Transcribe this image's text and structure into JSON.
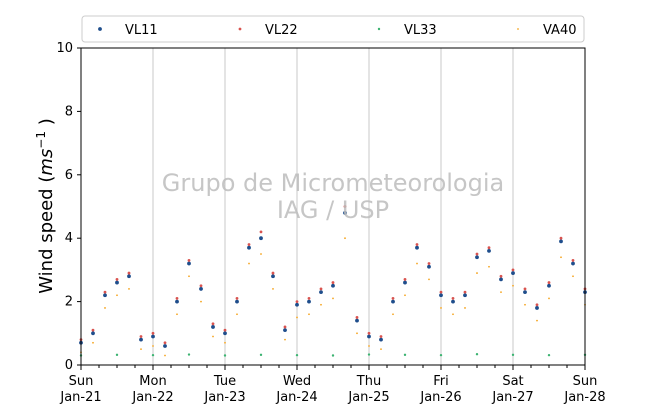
{
  "chart_data": {
    "type": "scatter",
    "ylabel_main": "Wind speed (",
    "ylabel_unit": "ms",
    "ylabel_exp": "−1",
    "ylabel_close": " )",
    "ylim": [
      0,
      10
    ],
    "yticks": [
      0,
      2,
      4,
      6,
      8,
      10
    ],
    "xlim": [
      "2024-01-21 00:00",
      "2024-01-28 00:00"
    ],
    "xtick_labels": [
      {
        "day": "Sun",
        "date": "Jan-21"
      },
      {
        "day": "Mon",
        "date": "Jan-22"
      },
      {
        "day": "Tue",
        "date": "Jan-23"
      },
      {
        "day": "Wed",
        "date": "Jan-24"
      },
      {
        "day": "Thu",
        "date": "Jan-25"
      },
      {
        "day": "Fri",
        "date": "Jan-26"
      },
      {
        "day": "Sat",
        "date": "Jan-27"
      },
      {
        "day": "Sun",
        "date": "Jan-28"
      }
    ],
    "grid": "vertical",
    "legend_placement": "top",
    "watermark": [
      "Grupo de Micrometeorologia",
      "IAG / USP"
    ],
    "series": [
      {
        "name": "VL11",
        "color": "#1f4e8c",
        "marker": "dot",
        "x_hours": [
          0,
          4,
          8,
          12,
          16,
          20,
          24,
          28,
          32,
          36,
          40,
          44,
          48,
          52,
          56,
          60,
          64,
          68,
          72,
          76,
          80,
          84,
          88,
          92,
          96,
          100,
          104,
          108,
          112,
          116,
          120,
          124,
          128,
          132,
          136,
          140,
          144,
          148,
          152,
          156,
          160,
          164,
          168
        ],
        "y": [
          0.7,
          1.0,
          2.2,
          2.6,
          2.8,
          0.8,
          0.9,
          0.6,
          2.0,
          3.2,
          2.4,
          1.2,
          1.0,
          2.0,
          3.7,
          4.0,
          2.8,
          1.1,
          1.9,
          2.0,
          2.3,
          2.5,
          4.8,
          1.4,
          0.9,
          0.8,
          2.0,
          2.6,
          3.7,
          3.1,
          2.2,
          2.0,
          2.2,
          3.4,
          3.6,
          2.7,
          2.9,
          2.3,
          1.8,
          2.5,
          3.9,
          3.2,
          2.3
        ]
      },
      {
        "name": "VL22",
        "color": "#d9534f",
        "marker": "dot",
        "x_hours": [
          0,
          4,
          8,
          12,
          16,
          20,
          24,
          28,
          32,
          36,
          40,
          44,
          48,
          52,
          56,
          60,
          64,
          68,
          72,
          76,
          80,
          84,
          88,
          92,
          96,
          100,
          104,
          108,
          112,
          116,
          120,
          124,
          128,
          132,
          136,
          140,
          144,
          148,
          152,
          156,
          160,
          164,
          168
        ],
        "y": [
          0.8,
          1.1,
          2.3,
          2.7,
          2.9,
          0.9,
          1.0,
          0.7,
          2.1,
          3.3,
          2.5,
          1.3,
          1.1,
          2.1,
          3.8,
          4.2,
          2.9,
          1.2,
          2.0,
          2.1,
          2.4,
          2.6,
          5.0,
          1.5,
          1.0,
          0.9,
          2.1,
          2.7,
          3.8,
          3.2,
          2.3,
          2.1,
          2.3,
          3.5,
          3.7,
          2.8,
          3.0,
          2.4,
          1.9,
          2.6,
          4.0,
          3.3,
          2.4
        ]
      },
      {
        "name": "VL33",
        "color": "#3cb371",
        "marker": "dot",
        "x_hours": [
          0,
          12,
          24,
          36,
          48,
          60,
          72,
          84,
          96,
          108,
          120,
          132,
          144,
          156,
          168
        ],
        "y": [
          0.3,
          0.32,
          0.31,
          0.33,
          0.3,
          0.32,
          0.31,
          0.3,
          0.33,
          0.32,
          0.31,
          0.34,
          0.32,
          0.31,
          0.32
        ]
      },
      {
        "name": "VA40",
        "color": "#f5a623",
        "marker": "dot",
        "x_hours": [
          0,
          4,
          8,
          12,
          16,
          20,
          24,
          28,
          32,
          36,
          40,
          44,
          48,
          52,
          56,
          60,
          64,
          68,
          72,
          76,
          80,
          84,
          88,
          92,
          96,
          100,
          104,
          108,
          112,
          116,
          120,
          124,
          128,
          132,
          136,
          140,
          144,
          148,
          152,
          156,
          160,
          164,
          168
        ],
        "y": [
          0.4,
          0.7,
          1.8,
          2.2,
          2.4,
          0.5,
          0.6,
          0.3,
          1.6,
          2.8,
          2.0,
          0.9,
          0.7,
          1.6,
          3.2,
          3.5,
          2.4,
          0.8,
          1.5,
          1.6,
          1.9,
          2.1,
          4.0,
          1.0,
          0.6,
          0.5,
          1.6,
          2.2,
          3.2,
          2.7,
          1.8,
          1.6,
          1.8,
          2.9,
          3.1,
          2.3,
          2.5,
          1.9,
          1.4,
          2.1,
          3.4,
          2.8,
          1.9
        ]
      }
    ]
  }
}
